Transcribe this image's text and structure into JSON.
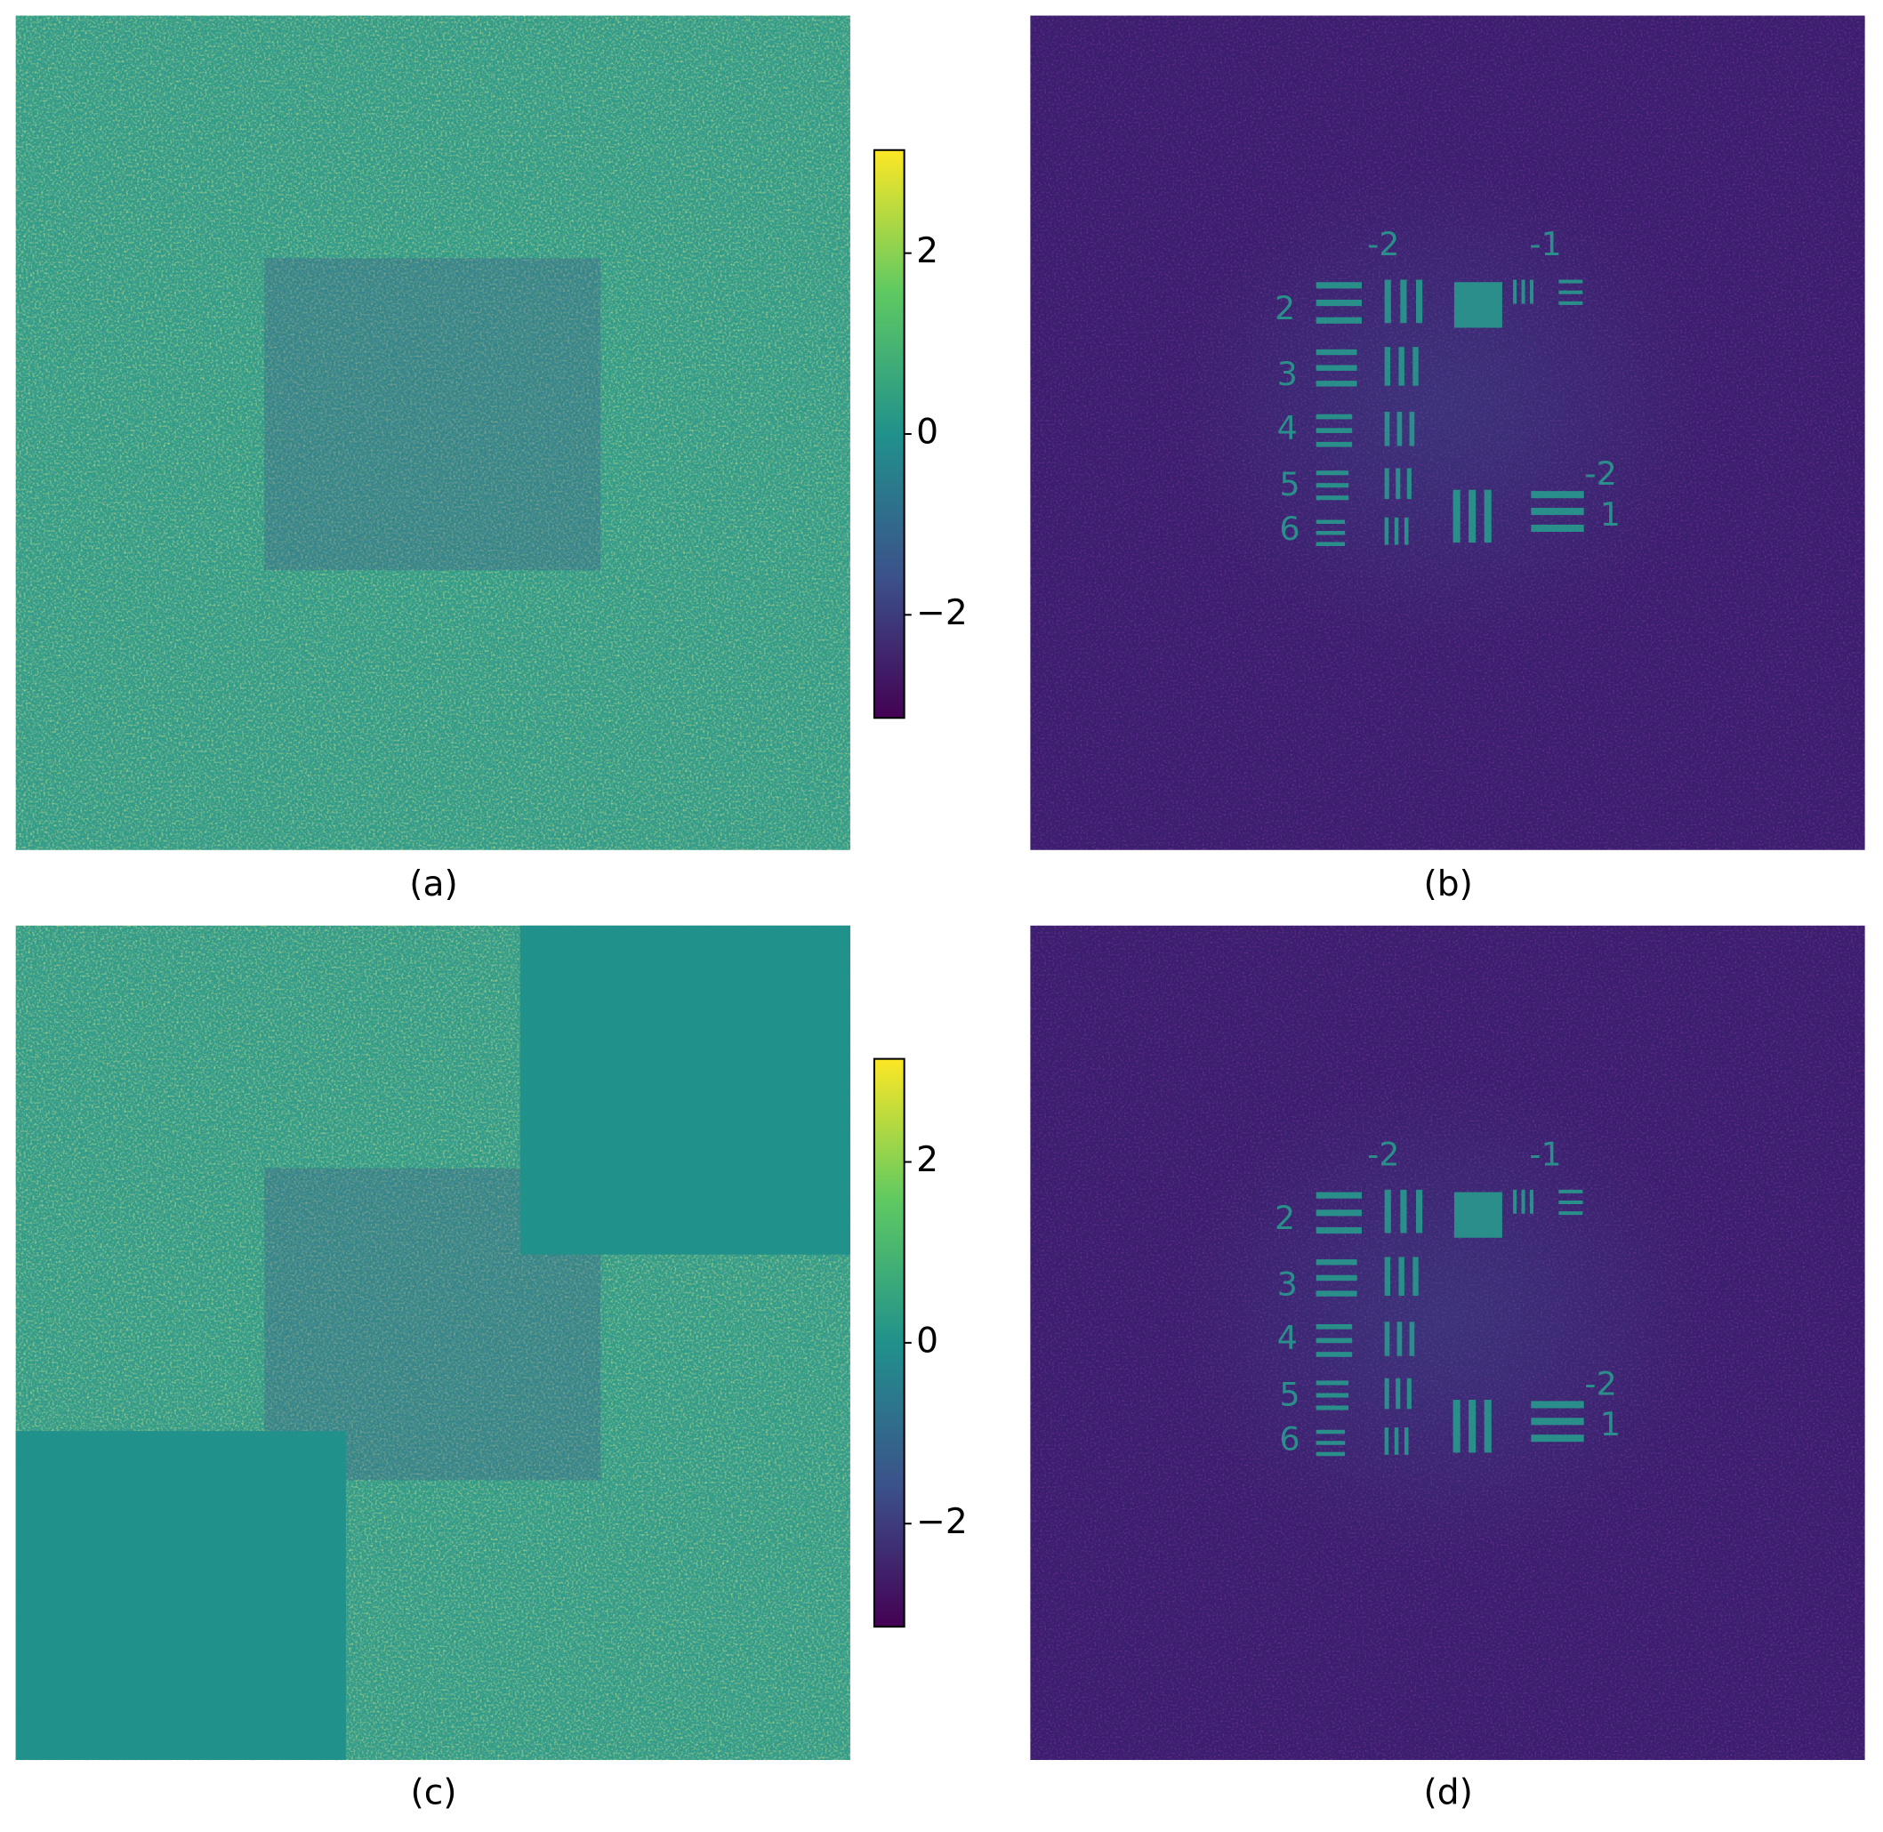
{
  "panels": [
    {
      "label": "(a)"
    },
    {
      "label": "(b)"
    },
    {
      "label": "(c)"
    },
    {
      "label": "(d)"
    }
  ],
  "colorbars": [
    {
      "ylim": [
        -3.14,
        3.14
      ],
      "yticks": [
        {
          "value": -2,
          "label": "−2"
        },
        0,
        2
      ]
    },
    {
      "ylim": [
        -3.14,
        3.14
      ],
      "yticks": [
        {
          "value": -2,
          "label": "−2"
        },
        0,
        2
      ]
    }
  ],
  "target_labels": [
    "-2",
    "-1",
    "2",
    "3",
    "4",
    "5",
    "6",
    "-2",
    "1"
  ]
}
